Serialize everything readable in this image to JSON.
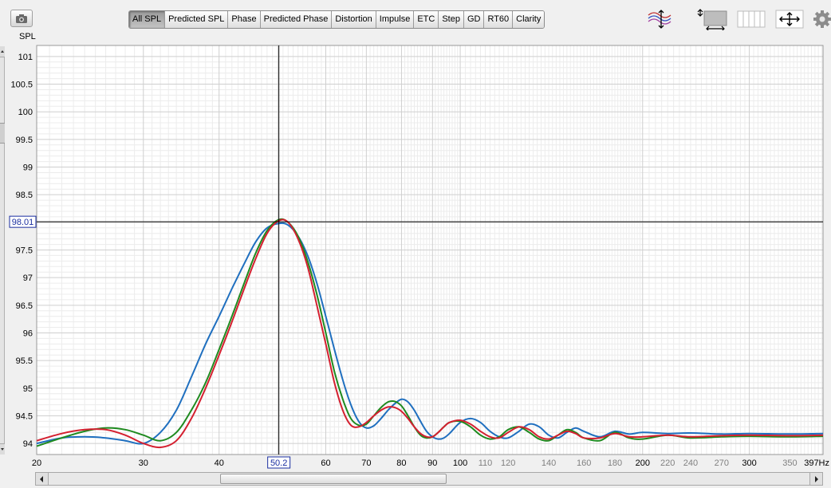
{
  "toolbar": {
    "camera_icon": "camera-icon",
    "tabs": [
      {
        "label": "All SPL",
        "active": true
      },
      {
        "label": "Predicted SPL",
        "active": false
      },
      {
        "label": "Phase",
        "active": false
      },
      {
        "label": "Predicted Phase",
        "active": false
      },
      {
        "label": "Distortion",
        "active": false
      },
      {
        "label": "Impulse",
        "active": false
      },
      {
        "label": "ETC",
        "active": false
      },
      {
        "label": "Step",
        "active": false
      },
      {
        "label": "GD",
        "active": false
      },
      {
        "label": "RT60",
        "active": false
      },
      {
        "label": "Clarity",
        "active": false
      }
    ],
    "right_icons": [
      "traces-icon",
      "axis-limits-icon",
      "columns-icon",
      "pan-arrows-icon",
      "gear-icon"
    ]
  },
  "y_axis": {
    "unit": "SPL",
    "ticks": [
      "101",
      "100.5",
      "100",
      "99.5",
      "99",
      "98.5",
      "98",
      "97.5",
      "97",
      "96.5",
      "96",
      "95.5",
      "95",
      "94.5",
      "94"
    ]
  },
  "x_axis": {
    "major_ticks": [
      "20",
      "30",
      "40",
      "60",
      "70",
      "80",
      "90",
      "100",
      "200",
      "300"
    ],
    "minor_ticks": [
      "110",
      "120",
      "140",
      "160",
      "180",
      "220",
      "240",
      "270",
      "350"
    ],
    "end_label": "397Hz"
  },
  "cursor": {
    "x_readout": "50.2",
    "y_readout": "98.01"
  },
  "colors": {
    "series_red": "#d42030",
    "series_green": "#1f8a1f",
    "series_blue": "#1f6fbf"
  },
  "chart_data": {
    "type": "line",
    "xscale": "log",
    "xlim": [
      20,
      397
    ],
    "ylim": [
      93.8,
      101.2
    ],
    "grid": true,
    "series": [
      {
        "color": "#1f6fbf",
        "x": [
          20,
          22,
          24,
          26,
          28,
          30,
          32,
          34,
          36,
          38,
          40,
          42,
          44,
          46,
          48,
          50.2,
          52,
          54,
          56,
          58,
          60,
          62,
          64,
          66,
          68,
          70,
          72,
          74,
          76,
          78,
          80,
          82,
          84,
          86,
          88,
          90,
          92,
          94,
          96,
          100,
          104,
          108,
          112,
          116,
          120,
          125,
          130,
          135,
          140,
          145,
          150,
          155,
          160,
          170,
          180,
          190,
          200,
          220,
          240,
          270,
          300,
          350,
          397
        ],
        "y": [
          94.0,
          94.1,
          94.12,
          94.1,
          94.05,
          94.0,
          94.2,
          94.6,
          95.2,
          95.8,
          96.3,
          96.8,
          97.25,
          97.65,
          97.9,
          97.98,
          97.95,
          97.75,
          97.4,
          96.9,
          96.3,
          95.7,
          95.15,
          94.7,
          94.4,
          94.28,
          94.32,
          94.45,
          94.6,
          94.72,
          94.8,
          94.75,
          94.6,
          94.4,
          94.22,
          94.12,
          94.08,
          94.1,
          94.18,
          94.38,
          94.45,
          94.38,
          94.22,
          94.12,
          94.1,
          94.22,
          94.35,
          94.3,
          94.15,
          94.1,
          94.2,
          94.28,
          94.22,
          94.12,
          94.22,
          94.17,
          94.2,
          94.18,
          94.19,
          94.17,
          94.18,
          94.17,
          94.18
        ]
      },
      {
        "color": "#1f8a1f",
        "x": [
          20,
          22,
          24,
          26,
          28,
          30,
          32,
          34,
          36,
          38,
          40,
          42,
          44,
          46,
          48,
          50.2,
          52,
          54,
          56,
          58,
          60,
          62,
          64,
          66,
          68,
          70,
          72,
          74,
          76,
          78,
          80,
          82,
          84,
          86,
          88,
          90,
          92,
          94,
          96,
          100,
          104,
          108,
          112,
          116,
          120,
          125,
          130,
          135,
          140,
          145,
          150,
          155,
          160,
          170,
          180,
          190,
          200,
          220,
          240,
          270,
          300,
          350,
          397
        ],
        "y": [
          93.95,
          94.1,
          94.22,
          94.28,
          94.25,
          94.15,
          94.05,
          94.2,
          94.6,
          95.1,
          95.7,
          96.3,
          96.9,
          97.45,
          97.85,
          98.05,
          98.0,
          97.75,
          97.3,
          96.7,
          96.0,
          95.3,
          94.8,
          94.45,
          94.33,
          94.35,
          94.5,
          94.65,
          94.75,
          94.76,
          94.68,
          94.5,
          94.3,
          94.15,
          94.1,
          94.12,
          94.2,
          94.3,
          94.38,
          94.4,
          94.3,
          94.15,
          94.08,
          94.12,
          94.25,
          94.3,
          94.2,
          94.08,
          94.05,
          94.15,
          94.25,
          94.2,
          94.1,
          94.05,
          94.2,
          94.1,
          94.08,
          94.15,
          94.1,
          94.12,
          94.13,
          94.12,
          94.13
        ]
      },
      {
        "color": "#d42030",
        "x": [
          20,
          22,
          24,
          26,
          28,
          30,
          32,
          34,
          36,
          38,
          40,
          42,
          44,
          46,
          48,
          50.2,
          52,
          54,
          56,
          58,
          60,
          62,
          64,
          66,
          68,
          70,
          72,
          74,
          76,
          78,
          80,
          82,
          84,
          86,
          88,
          90,
          92,
          94,
          96,
          100,
          104,
          108,
          112,
          116,
          120,
          125,
          130,
          135,
          140,
          145,
          150,
          155,
          160,
          170,
          180,
          190,
          200,
          220,
          240,
          270,
          300,
          350,
          397
        ],
        "y": [
          94.05,
          94.18,
          94.25,
          94.25,
          94.15,
          94.0,
          93.93,
          94.05,
          94.45,
          95.0,
          95.6,
          96.2,
          96.8,
          97.35,
          97.8,
          98.03,
          98.0,
          97.7,
          97.2,
          96.5,
          95.8,
          95.1,
          94.6,
          94.33,
          94.3,
          94.38,
          94.5,
          94.6,
          94.66,
          94.65,
          94.58,
          94.45,
          94.3,
          94.18,
          94.12,
          94.12,
          94.2,
          94.3,
          94.38,
          94.42,
          94.35,
          94.22,
          94.12,
          94.1,
          94.2,
          94.3,
          94.25,
          94.12,
          94.08,
          94.15,
          94.22,
          94.18,
          94.1,
          94.1,
          94.18,
          94.12,
          94.12,
          94.15,
          94.12,
          94.14,
          94.15,
          94.14,
          94.15
        ]
      }
    ]
  }
}
